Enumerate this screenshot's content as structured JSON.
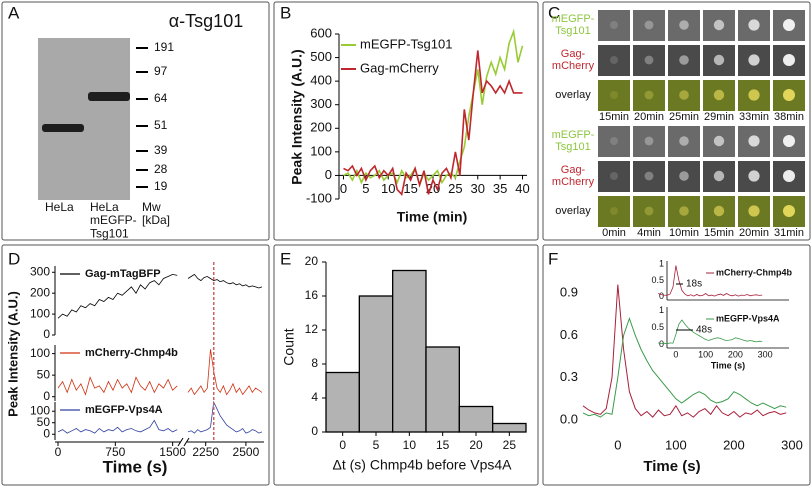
{
  "panel_letters": [
    "A",
    "B",
    "C",
    "D",
    "E",
    "F"
  ],
  "blot": {
    "title": "α-Tsg101",
    "markers": [
      191,
      97,
      64,
      51,
      39,
      28,
      19
    ],
    "lanes": [
      "HeLa",
      "HeLa\nmEGFP-\nTsg101"
    ],
    "marker_label": "Mw\n[kDa]"
  },
  "images": {
    "groups": [
      {
        "rows": [
          "mEGFP-\nTsg101",
          "Gag-\nmCherry",
          "overlay"
        ],
        "times": [
          "15min",
          "20min",
          "25min",
          "29min",
          "33min",
          "38min"
        ]
      },
      {
        "rows": [
          "mEGFP-\nTsg101",
          "Gag-\nmCherry",
          "overlay"
        ],
        "times": [
          "0min",
          "4min",
          "10min",
          "15min",
          "20min",
          "31min"
        ]
      }
    ]
  },
  "chart_data": [
    {
      "type": "line",
      "ylabel": "Peak Intensity (A.U.)",
      "xlabel": "Time (min)",
      "x": [
        0,
        1,
        2,
        3,
        4,
        5,
        6,
        7,
        8,
        9,
        10,
        11,
        12,
        13,
        14,
        15,
        16,
        17,
        18,
        19,
        20,
        21,
        22,
        23,
        24,
        25,
        26,
        27,
        28,
        29,
        30,
        31,
        32,
        33,
        34,
        35,
        36,
        37,
        38,
        39,
        40
      ],
      "series": [
        {
          "name": "mEGFP-Tsg101",
          "color": "#99cc33",
          "values": [
            0,
            10,
            -20,
            20,
            -30,
            10,
            -10,
            0,
            20,
            -20,
            0,
            10,
            -30,
            20,
            -10,
            0,
            30,
            -40,
            10,
            -20,
            0,
            20,
            -30,
            0,
            10,
            -10,
            60,
            120,
            250,
            350,
            450,
            300,
            420,
            480,
            430,
            500,
            450,
            560,
            610,
            480,
            550
          ]
        },
        {
          "name": "Gag-mCherry",
          "color": "#c0262d",
          "values": [
            30,
            20,
            40,
            0,
            30,
            -20,
            20,
            40,
            -10,
            20,
            0,
            30,
            -60,
            -80,
            10,
            -20,
            30,
            -40,
            20,
            -80,
            -20,
            -60,
            10,
            30,
            -10,
            100,
            0,
            280,
            150,
            350,
            530,
            350,
            400,
            380,
            350,
            380,
            350,
            400,
            350,
            350,
            350
          ]
        }
      ],
      "xlim": [
        -1,
        41
      ],
      "xticks": [
        0,
        5,
        10,
        15,
        20,
        25,
        30,
        35,
        40
      ],
      "ylim": [
        -100,
        600
      ],
      "yticks": [
        -100,
        0,
        100,
        200,
        300,
        400,
        500,
        600
      ]
    },
    {
      "type": "line",
      "ylabel": "Peak Intensity (A.U.)",
      "xlabel": "Time (s)",
      "x": [
        0,
        60,
        120,
        180,
        240,
        300,
        360,
        420,
        480,
        540,
        600,
        660,
        720,
        780,
        840,
        900,
        960,
        1020,
        1080,
        1140,
        1200,
        1260,
        1320,
        1380,
        1440,
        1500,
        1560,
        2140,
        2160,
        2180,
        2200,
        2220,
        2240,
        2260,
        2280,
        2300,
        2320,
        2340,
        2360,
        2380,
        2400,
        2420,
        2440,
        2460,
        2480,
        2500,
        2520,
        2540,
        2560,
        2580,
        2600
      ],
      "xlim": [
        0,
        2600
      ],
      "xbreak": [
        1570,
        2140
      ],
      "xticks": [
        0,
        750,
        1500,
        2250,
        2500
      ],
      "vline": 2300,
      "series": [
        {
          "name": "Gag-mTagBFP",
          "color": "#000000",
          "ylim": [
            0,
            330
          ],
          "yticks": [
            0,
            100,
            200,
            300
          ],
          "values": [
            80,
            100,
            90,
            120,
            110,
            140,
            130,
            150,
            140,
            170,
            160,
            180,
            170,
            200,
            190,
            210,
            230,
            200,
            240,
            220,
            250,
            260,
            240,
            270,
            280,
            290,
            285,
            270,
            280,
            290,
            270,
            260,
            275,
            280,
            270,
            260,
            265,
            255,
            260,
            250,
            245,
            250,
            240,
            245,
            235,
            240,
            230,
            235,
            230,
            225,
            230
          ]
        },
        {
          "name": "mCherry-Chmp4b",
          "color": "#d03010",
          "ylim": [
            -10,
            120
          ],
          "yticks": [
            0,
            50,
            100
          ],
          "values": [
            20,
            35,
            10,
            40,
            15,
            30,
            5,
            45,
            20,
            25,
            10,
            35,
            15,
            40,
            20,
            30,
            10,
            45,
            25,
            15,
            35,
            10,
            30,
            20,
            40,
            15,
            25,
            10,
            20,
            5,
            15,
            25,
            10,
            20,
            110,
            60,
            20,
            10,
            25,
            5,
            15,
            30,
            10,
            20,
            5,
            15,
            25,
            10,
            20,
            15,
            10
          ]
        },
        {
          "name": "mEGFP-Vps4A",
          "color": "#3040a0",
          "ylim": [
            -25,
            140
          ],
          "yticks": [
            0,
            50,
            100
          ],
          "values": [
            10,
            20,
            5,
            15,
            25,
            10,
            20,
            15,
            5,
            25,
            10,
            20,
            15,
            30,
            10,
            20,
            25,
            15,
            10,
            20,
            30,
            60,
            20,
            15,
            25,
            10,
            20,
            10,
            15,
            5,
            20,
            10,
            15,
            20,
            30,
            140,
            110,
            80,
            60,
            40,
            30,
            20,
            10,
            15,
            25,
            5,
            10,
            20,
            15,
            5,
            10
          ]
        }
      ]
    },
    {
      "type": "histogram",
      "ylabel": "Count",
      "xlabel": "Δt (s) Chmp4b before Vps4A",
      "bins": [
        -2.5,
        2.5,
        7.5,
        12.5,
        17.5,
        22.5,
        27.5
      ],
      "values": [
        7,
        16,
        19,
        10,
        3,
        1
      ],
      "color": "#b3b3b3",
      "xlim": [
        -2.5,
        27.5
      ],
      "xticks": [
        0,
        5,
        10,
        15,
        20,
        25
      ],
      "ylim": [
        0,
        20
      ],
      "yticks": [
        0,
        4,
        8,
        12,
        16,
        20
      ]
    },
    {
      "type": "line",
      "xlabel": "Time (s)",
      "x": [
        -60,
        -50,
        -40,
        -30,
        -20,
        -10,
        0,
        10,
        20,
        30,
        40,
        50,
        60,
        70,
        80,
        90,
        100,
        110,
        120,
        130,
        140,
        150,
        160,
        170,
        180,
        190,
        200,
        210,
        220,
        230,
        240,
        250,
        260,
        270,
        280,
        290
      ],
      "series": [
        {
          "name": "mCherry-Chmp4b",
          "color": "#a8203a",
          "values": [
            0.1,
            0.07,
            0.05,
            0.04,
            0.08,
            0.3,
            0.96,
            0.5,
            0.2,
            0.08,
            0.03,
            0.06,
            0.02,
            0.07,
            0.03,
            0.04,
            0.1,
            0.03,
            0.05,
            0.02,
            0.06,
            0.08,
            0.04,
            0.1,
            0.05,
            0.03,
            0.06,
            0.02,
            0.05,
            0.04,
            0.07,
            0.03,
            0.05,
            0.06,
            0.04,
            0.05
          ]
        },
        {
          "name": "mEGFP-Vps4A",
          "color": "#3a9a4a",
          "values": [
            0.05,
            0.03,
            0.04,
            0.02,
            0.05,
            0.04,
            0.3,
            0.6,
            0.72,
            0.6,
            0.5,
            0.42,
            0.35,
            0.3,
            0.25,
            0.2,
            0.15,
            0.12,
            0.15,
            0.18,
            0.2,
            0.18,
            0.14,
            0.12,
            0.13,
            0.15,
            0.2,
            0.18,
            0.15,
            0.12,
            0.1,
            0.12,
            0.1,
            0.08,
            0.1,
            0.09
          ]
        }
      ],
      "xlim": [
        -60,
        300
      ],
      "xticks": [
        0,
        100,
        200,
        300
      ],
      "ylim": [
        -0.1,
        1.0
      ],
      "yticks": [
        {
          "value": 0,
          "label": "0.0"
        },
        0.3,
        0.6,
        0.9
      ],
      "inset": {
        "xlabel": "Time (s)",
        "xlim": [
          -30,
          380
        ],
        "xticks": [
          0,
          100,
          200,
          300
        ],
        "ylim": [
          -0.1,
          1.1
        ],
        "yticks": [
          0,
          0.5,
          1
        ],
        "annotations": [
          "18s",
          "48s"
        ]
      }
    }
  ]
}
